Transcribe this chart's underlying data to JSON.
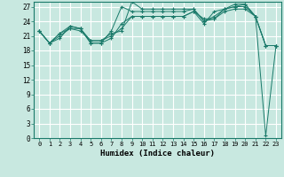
{
  "title": "",
  "xlabel": "Humidex (Indice chaleur)",
  "ylabel": "",
  "background_color": "#c8e8e0",
  "grid_color": "#ffffff",
  "line_color": "#1a7a6a",
  "marker": "+",
  "xlim": [
    -0.5,
    23.5
  ],
  "ylim": [
    0,
    28
  ],
  "xticks": [
    0,
    1,
    2,
    3,
    4,
    5,
    6,
    7,
    8,
    9,
    10,
    11,
    12,
    13,
    14,
    15,
    16,
    17,
    18,
    19,
    20,
    21,
    22,
    23
  ],
  "yticks": [
    0,
    3,
    6,
    9,
    12,
    15,
    18,
    21,
    24,
    27
  ],
  "series": [
    [
      22.0,
      19.5,
      20.5,
      23.0,
      22.5,
      20.0,
      20.0,
      21.5,
      22.0,
      28.0,
      26.5,
      26.5,
      26.5,
      26.5,
      26.5,
      26.5,
      24.0,
      25.0,
      26.5,
      27.5,
      27.5,
      25.0,
      19.0,
      19.0
    ],
    [
      22.0,
      19.5,
      21.0,
      22.5,
      22.5,
      19.5,
      19.5,
      22.0,
      27.0,
      26.0,
      26.0,
      26.0,
      26.0,
      26.0,
      26.0,
      26.5,
      24.0,
      24.5,
      26.0,
      26.5,
      26.5,
      25.0,
      0.5,
      19.0
    ],
    [
      22.0,
      19.5,
      21.5,
      22.5,
      22.0,
      20.0,
      20.0,
      21.0,
      22.5,
      25.0,
      25.0,
      25.0,
      25.0,
      25.0,
      25.0,
      26.0,
      23.5,
      26.0,
      26.5,
      27.0,
      27.0,
      25.0,
      19.0,
      19.0
    ],
    [
      22.0,
      19.5,
      21.5,
      23.0,
      22.5,
      19.5,
      19.5,
      20.5,
      23.5,
      25.0,
      25.0,
      25.0,
      25.0,
      25.0,
      25.0,
      26.0,
      24.5,
      24.5,
      26.5,
      27.0,
      27.5,
      25.0,
      19.0,
      19.0
    ]
  ]
}
